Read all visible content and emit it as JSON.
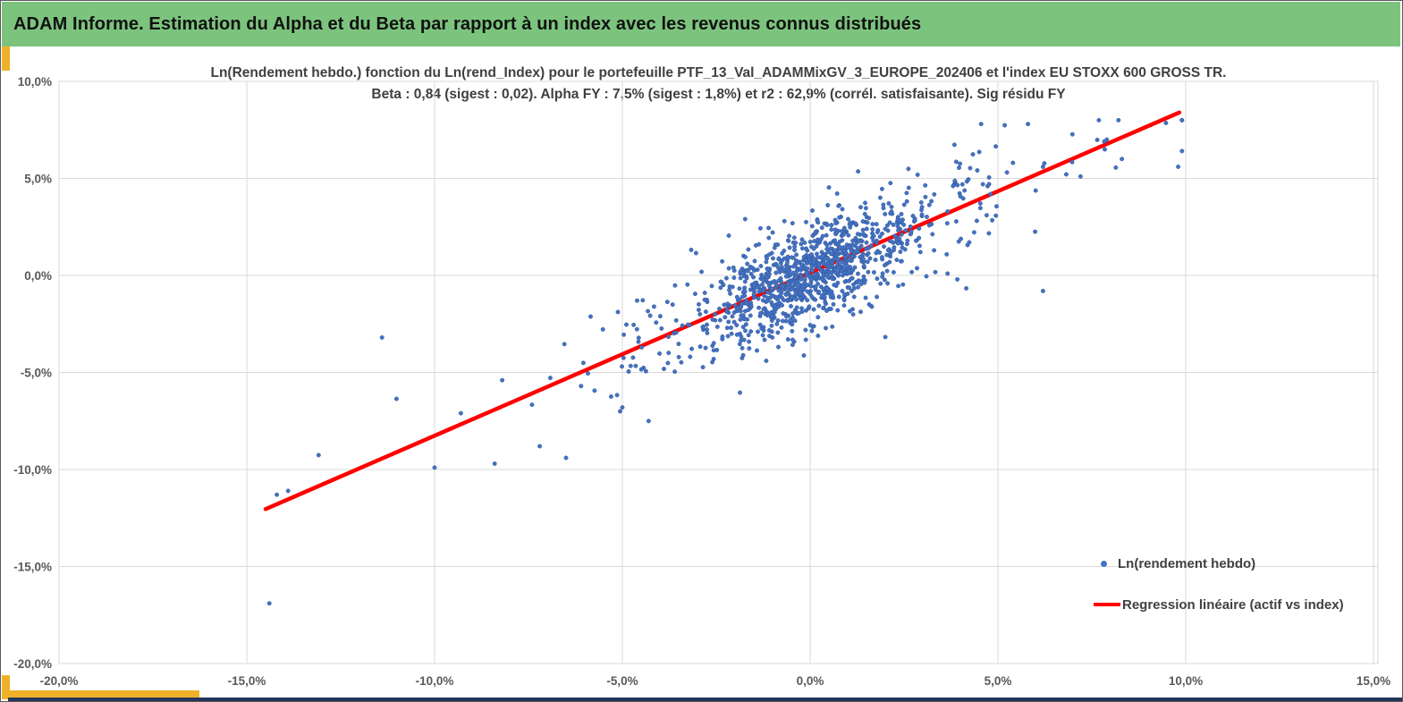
{
  "header": {
    "title": "ADAM Informe. Estimation du Alpha et du Beta par rapport à un index avec les revenus connus distribués",
    "bg_color": "#7CC47E"
  },
  "accents": {
    "yellow": "#F0B12A",
    "navy": "#24355B"
  },
  "chart_data": {
    "type": "scatter",
    "title_line1": "Ln(Rendement hebdo.) fonction du Ln(rend_Index) pour le portefeuille PTF_13_Val_ADAMMixGV_3_EUROPE_202406 et l'index EU STOXX 600 GROSS TR.",
    "title_line2": "Beta : 0,84 (sigest : 0,02). Alpha FY : 7,5% (sigest : 1,8%) et r2 : 62,9% (corrél. satisfaisante). Sig résidu FY",
    "stats": {
      "beta": "0,84",
      "beta_sigest": "0,02",
      "alpha_fy": "7,5%",
      "alpha_sigest": "1,8%",
      "r2": "62,9%",
      "correlation_note": "corrél. satisfaisante"
    },
    "xlim": [
      -20,
      15
    ],
    "ylim": [
      -20,
      10
    ],
    "x_ticks": [
      "-20,0%",
      "-15,0%",
      "-10,0%",
      "-5,0%",
      "0,0%",
      "5,0%",
      "10,0%",
      "15,0%"
    ],
    "x_tick_values": [
      -20,
      -15,
      -10,
      -5,
      0,
      5,
      10,
      15
    ],
    "y_ticks": [
      "10,0%",
      "5,0%",
      "0,0%",
      "-5,0%",
      "-10,0%",
      "-15,0%",
      "-20,0%"
    ],
    "y_tick_values": [
      10,
      5,
      0,
      -5,
      -10,
      -15,
      -20
    ],
    "grid_color": "#D9D9D9",
    "axis_label_color": "#595959",
    "regression": {
      "name": "Regression linéaire (actif vs index)",
      "beta": 0.84,
      "alpha_weekly_pct": 0.14,
      "x_start": -14.5,
      "x_end": 9.83,
      "color": "#FF0000",
      "width": 4.5
    },
    "series": [
      {
        "name": "Ln(rendement hebdo)",
        "marker_color": "#4472C4",
        "marker_edge": "#2F5597",
        "marker_radius": 2.2,
        "n_points": 1160,
        "generator": {
          "seed": 20240613,
          "weights": [
            0.58,
            0.32,
            0.1
          ],
          "x_sigmas": [
            1.25,
            2.4,
            4.6
          ],
          "resid_mult": [
            1.0,
            1.1,
            1.25
          ],
          "x_mean": 0.1,
          "resid_sigma": 1.28,
          "x_clip": [
            -14.6,
            9.9
          ],
          "y_clip": [
            -17.0,
            8.0
          ]
        },
        "outlier_points": [
          [
            -14.4,
            -16.9
          ],
          [
            -14.2,
            -11.3
          ],
          [
            -13.9,
            -11.1
          ],
          [
            -11.4,
            -3.2
          ],
          [
            -10.0,
            -9.9
          ],
          [
            -9.3,
            -7.1
          ],
          [
            -8.4,
            -9.7
          ],
          [
            -8.2,
            -5.4
          ],
          [
            -7.2,
            -8.8
          ],
          [
            -6.5,
            -9.4
          ],
          [
            -6.1,
            -5.7
          ],
          [
            -5.0,
            -6.8
          ],
          [
            -4.3,
            -7.5
          ],
          [
            6.2,
            -0.8
          ],
          [
            5.4,
            5.8
          ],
          [
            5.8,
            7.8
          ],
          [
            6.2,
            5.6
          ],
          [
            7.2,
            5.1
          ],
          [
            7.9,
            7.0
          ],
          [
            8.3,
            6.0
          ],
          [
            9.8,
            5.6
          ],
          [
            4.6,
            4.7
          ],
          [
            4.7,
            3.1
          ]
        ]
      }
    ],
    "legend": [
      {
        "label": "Ln(rendement hebdo)",
        "marker": "dot",
        "color": "#4472C4"
      },
      {
        "label": "Regression linéaire (actif vs index)",
        "marker": "line",
        "color": "#FF0000"
      }
    ]
  }
}
